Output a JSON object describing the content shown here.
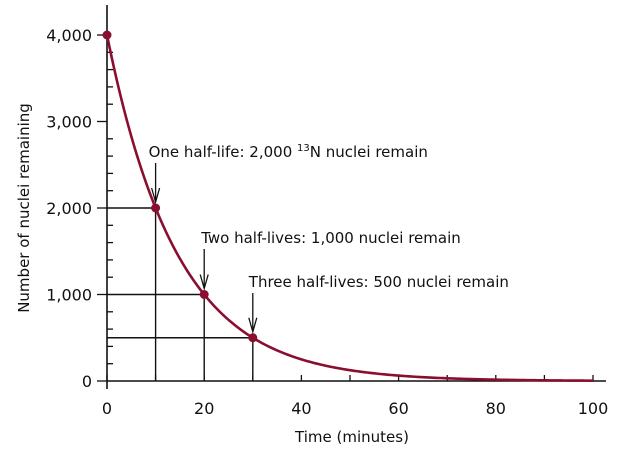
{
  "chart_data": {
    "type": "line",
    "title": "",
    "xlabel": "Time (minutes)",
    "ylabel": "Number of nuclei remaining",
    "xlim": [
      0,
      100
    ],
    "ylim": [
      0,
      4000
    ],
    "x_ticks": [
      0,
      20,
      40,
      60,
      80,
      100
    ],
    "x_tick_labels": [
      "0",
      "20",
      "40",
      "60",
      "80",
      "100"
    ],
    "x_minor_step": 10,
    "y_ticks": [
      0,
      1000,
      2000,
      3000,
      4000
    ],
    "y_tick_labels": [
      "0",
      "1,000",
      "2,000",
      "3,000",
      "4,000"
    ],
    "y_minor_step": 200,
    "grid": false,
    "curve": {
      "initial": 4000,
      "half_life_minutes": 10,
      "x_range": [
        0,
        100
      ]
    },
    "points": [
      {
        "x": 0,
        "y": 4000
      },
      {
        "x": 10,
        "y": 2000
      },
      {
        "x": 20,
        "y": 1000
      },
      {
        "x": 30,
        "y": 500
      }
    ],
    "annotations": [
      {
        "text": "One half-life:  2,000 ",
        "sup": "13",
        "text_after": "N nuclei remain",
        "x": 10,
        "y": 2000
      },
      {
        "text": "Two half-lives:  1,000 nuclei remain",
        "x": 20,
        "y": 1000
      },
      {
        "text": "Three half-lives:  500 nuclei remain",
        "x": 30,
        "y": 500
      }
    ],
    "colors": {
      "curve": "#8a0e2f",
      "axes": "#111111"
    }
  }
}
